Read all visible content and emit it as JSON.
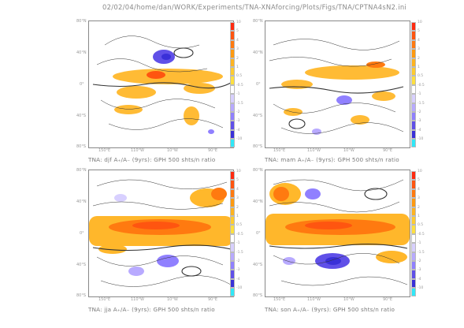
{
  "header": {
    "path": "02/02/04/home/dan/WORK/Experiments/TNA-XNAforcing/Plots/Figs/TNA/CPTNA4sN2.ini"
  },
  "lat_ticks": [
    "80°N",
    "40°N",
    "0°",
    "40°S",
    "80°S"
  ],
  "lon_ticks": [
    "150°E",
    "110°W",
    "10°W",
    "90°E"
  ],
  "colorbar": {
    "labels": [
      "10",
      "5",
      "4",
      "3",
      "2",
      "1",
      "0.5",
      "-0.5",
      "-1",
      "-1.5",
      "-2",
      "-3",
      "-4",
      "-10"
    ],
    "colors": [
      "#ff2a10",
      "#ff5510",
      "#ff7a10",
      "#ff9a10",
      "#ffb420",
      "#ffcc30",
      "#ffe040",
      "#ffffff",
      "#d8d0ff",
      "#b8aaff",
      "#9080ff",
      "#6050e8",
      "#3a30d8",
      "#30e8f8"
    ]
  },
  "panels": [
    {
      "id": "djf",
      "caption": "TNA: djf A₊/A₋ (9yrs): GPH 500 shts/n ratio"
    },
    {
      "id": "mam",
      "caption": "TNA: mam A₊/A₋ (9yrs): GPH 500 shts/n ratio"
    },
    {
      "id": "jja",
      "caption": "TNA: jja A₊/A₋ (9yrs): GPH 500 shts/n ratio"
    },
    {
      "id": "son",
      "caption": "TNA: son A₊/A₋ (9yrs): GPH 500 shts/n ratio"
    }
  ]
}
